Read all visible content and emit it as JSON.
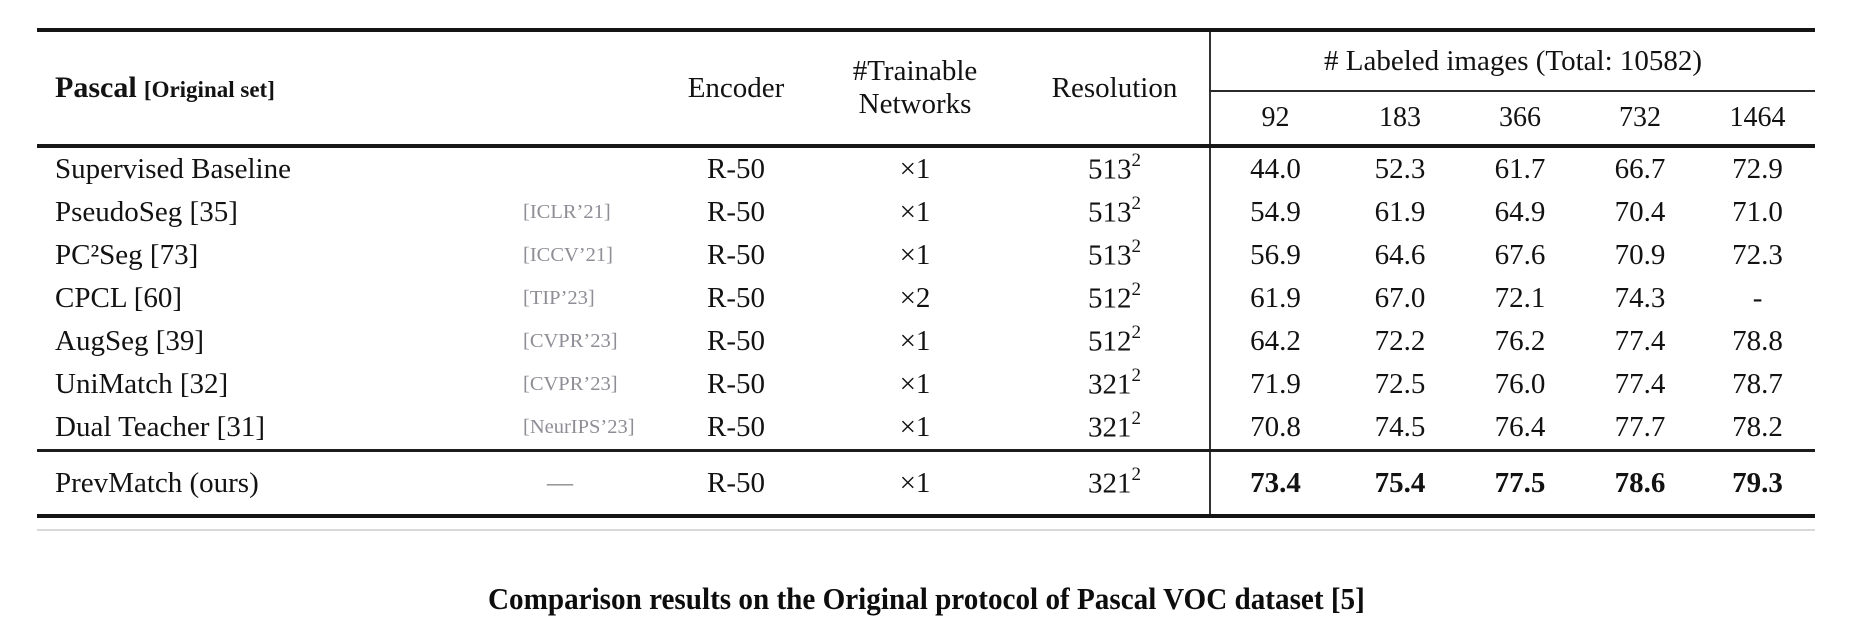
{
  "table": {
    "header": {
      "method_title": "Pascal",
      "method_subtitle": "[Original set]",
      "encoder": "Encoder",
      "networks_line1": "#Trainable",
      "networks_line2": "Networks",
      "resolution": "Resolution",
      "labeled_group": "# Labeled images (Total: 10582)",
      "splits": [
        "92",
        "183",
        "366",
        "732",
        "1464"
      ]
    },
    "rows": [
      {
        "method": "Supervised Baseline",
        "venue": "",
        "encoder": "R-50",
        "networks": "×1",
        "resolution": "513",
        "values": [
          "44.0",
          "52.3",
          "61.7",
          "66.7",
          "72.9"
        ],
        "bold": false
      },
      {
        "method": "PseudoSeg [35]",
        "venue": "[ICLR’21]",
        "encoder": "R-50",
        "networks": "×1",
        "resolution": "513",
        "values": [
          "54.9",
          "61.9",
          "64.9",
          "70.4",
          "71.0"
        ],
        "bold": false
      },
      {
        "method": "PC²Seg [73]",
        "venue": "[ICCV’21]",
        "encoder": "R-50",
        "networks": "×1",
        "resolution": "513",
        "values": [
          "56.9",
          "64.6",
          "67.6",
          "70.9",
          "72.3"
        ],
        "bold": false
      },
      {
        "method": "CPCL [60]",
        "venue": "[TIP’23]",
        "encoder": "R-50",
        "networks": "×2",
        "resolution": "512",
        "values": [
          "61.9",
          "67.0",
          "72.1",
          "74.3",
          "-"
        ],
        "bold": false
      },
      {
        "method": "AugSeg [39]",
        "venue": "[CVPR’23]",
        "encoder": "R-50",
        "networks": "×1",
        "resolution": "512",
        "values": [
          "64.2",
          "72.2",
          "76.2",
          "77.4",
          "78.8"
        ],
        "bold": false
      },
      {
        "method": "UniMatch [32]",
        "venue": "[CVPR’23]",
        "encoder": "R-50",
        "networks": "×1",
        "resolution": "321",
        "values": [
          "71.9",
          "72.5",
          "76.0",
          "77.4",
          "78.7"
        ],
        "bold": false
      },
      {
        "method": "Dual Teacher [31]",
        "venue": "[NeurIPS’23]",
        "encoder": "R-50",
        "networks": "×1",
        "resolution": "321",
        "values": [
          "70.8",
          "74.5",
          "76.4",
          "77.7",
          "78.2"
        ],
        "bold": false
      }
    ],
    "ours_row": {
      "method": "PrevMatch (ours)",
      "venue": "—",
      "encoder": "R-50",
      "networks": "×1",
      "resolution": "321",
      "values": [
        "73.4",
        "75.4",
        "77.5",
        "78.6",
        "79.3"
      ],
      "bold": true
    }
  },
  "caption": "Comparison results on the Original protocol of Pascal VOC dataset [5]",
  "colors": {
    "text": "#121212",
    "venue_gray": "#8e8e96",
    "rule_dark": "#151515",
    "rule_faint": "#d9d9d9"
  }
}
